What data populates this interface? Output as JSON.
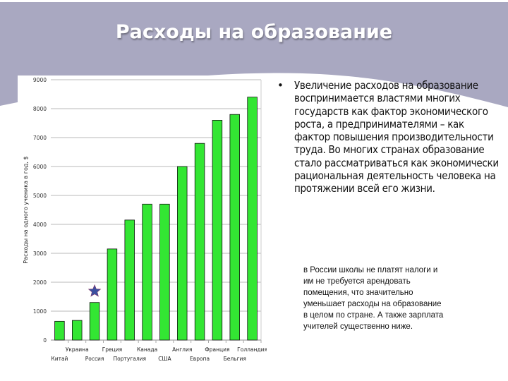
{
  "slide": {
    "title": "Расходы на образование",
    "header_color": "#a9a8c1",
    "bullet": "•",
    "main_text": "Увеличение расходов на образование воспринимается властями многих государств как фактор экономического роста, а предпринимателями – как фактор повышения производительности труда. Во многих странах образование стало рассматриваться как экономически рациональная деятельность человека на протяжении всей его жизни.",
    "note": "в России школы не платят налоги и им не требуется арендовать помещения, что значительно уменьшает расходы на образование в целом по стране. А также зарплата учителей существенно ниже."
  },
  "chart_data": {
    "type": "bar",
    "ylabel": "Расходы на одного ученика в год, $",
    "xlabel": "",
    "ylim": [
      0,
      9000
    ],
    "yticks": [
      "0",
      "1000",
      "2000",
      "3000",
      "4000",
      "5000",
      "6000",
      "7000",
      "8000",
      "9000"
    ],
    "grid": true,
    "bar_color": "#33e633",
    "highlight_marker": {
      "category": "Россия",
      "icon": "star-icon",
      "color": "#3b4fa0"
    },
    "categories": [
      "Китай",
      "Украина",
      "Россия",
      "Греция",
      "Португалия",
      "Канада",
      "США",
      "Англия",
      "Европа",
      "Франция",
      "Бельгия",
      "Голландия"
    ],
    "values": [
      650,
      680,
      1300,
      3150,
      4150,
      4700,
      4700,
      6000,
      6800,
      7600,
      7800,
      8400
    ]
  }
}
